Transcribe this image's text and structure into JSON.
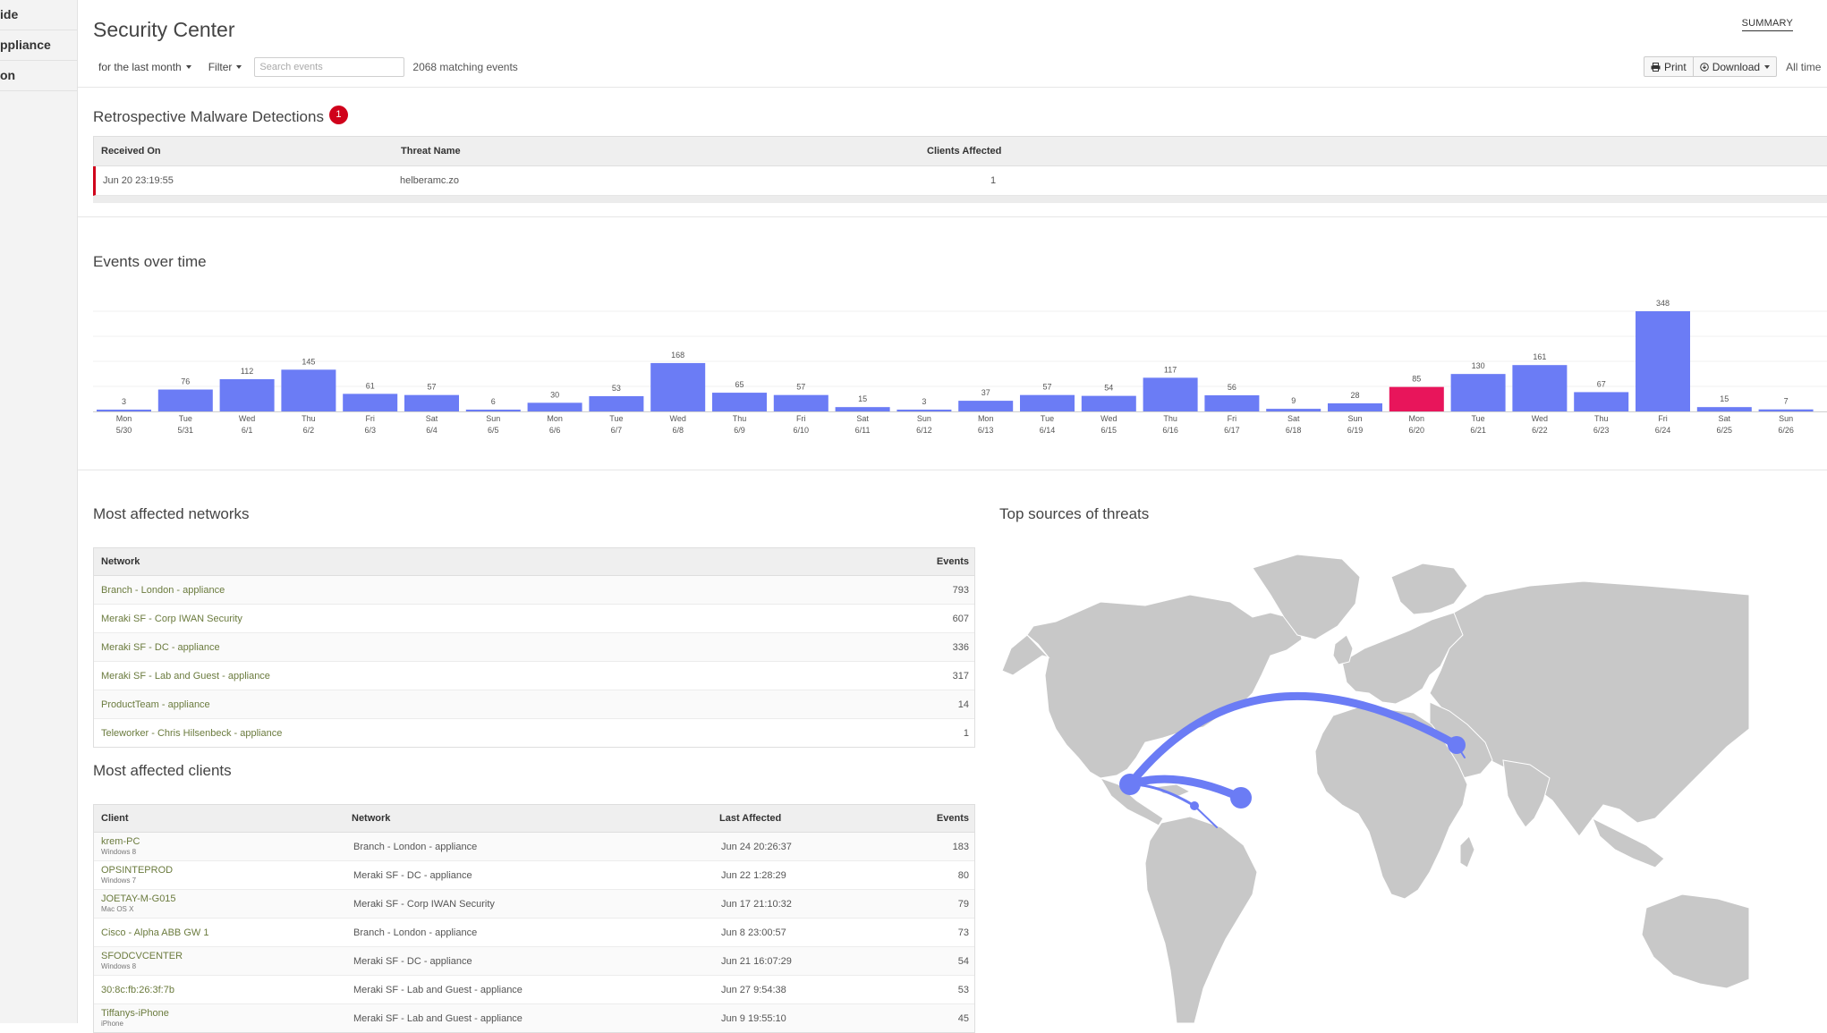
{
  "sidebar": {
    "items": [
      {
        "label": "ide"
      },
      {
        "label": "ppliance"
      },
      {
        "label": "on"
      }
    ]
  },
  "header": {
    "title": "Security Center",
    "summary_link": "SUMMARY"
  },
  "toolbar": {
    "timeframe": "for the last month",
    "filter": "Filter",
    "search_placeholder": "Search events",
    "match_count": "2068 matching events",
    "print": "Print",
    "download": "Download",
    "all_time": "All time"
  },
  "retro": {
    "title": "Retrospective Malware Detections",
    "badge": "1",
    "columns": [
      "Received On",
      "Threat Name",
      "Clients Affected"
    ],
    "rows": [
      {
        "received": "Jun 20 23:19:55",
        "threat": "helberamc.zo",
        "clients": "1"
      }
    ]
  },
  "events_section": {
    "title": "Events over time"
  },
  "chart_data": {
    "type": "bar",
    "categories": [
      "Mon 5/30",
      "Tue 5/31",
      "Wed 6/1",
      "Thu 6/2",
      "Fri 6/3",
      "Sat 6/4",
      "Sun 6/5",
      "Mon 6/6",
      "Tue 6/7",
      "Wed 6/8",
      "Thu 6/9",
      "Fri 6/10",
      "Sat 6/11",
      "Sun 6/12",
      "Mon 6/13",
      "Tue 6/14",
      "Wed 6/15",
      "Thu 6/16",
      "Fri 6/17",
      "Sat 6/18",
      "Sun 6/19",
      "Mon 6/20",
      "Tue 6/21",
      "Wed 6/22",
      "Thu 6/23",
      "Fri 6/24",
      "Sat 6/25",
      "Sun 6/26"
    ],
    "days": [
      "Mon",
      "Tue",
      "Wed",
      "Thu",
      "Fri",
      "Sat",
      "Sun",
      "Mon",
      "Tue",
      "Wed",
      "Thu",
      "Fri",
      "Sat",
      "Sun",
      "Mon",
      "Tue",
      "Wed",
      "Thu",
      "Fri",
      "Sat",
      "Sun",
      "Mon",
      "Tue",
      "Wed",
      "Thu",
      "Fri",
      "Sat",
      "Sun"
    ],
    "dates": [
      "5/30",
      "5/31",
      "6/1",
      "6/2",
      "6/3",
      "6/4",
      "6/5",
      "6/6",
      "6/7",
      "6/8",
      "6/9",
      "6/10",
      "6/11",
      "6/12",
      "6/13",
      "6/14",
      "6/15",
      "6/16",
      "6/17",
      "6/18",
      "6/19",
      "6/20",
      "6/21",
      "6/22",
      "6/23",
      "6/24",
      "6/25",
      "6/26"
    ],
    "values": [
      3,
      76,
      112,
      145,
      61,
      57,
      6,
      30,
      53,
      168,
      65,
      57,
      15,
      3,
      37,
      57,
      54,
      117,
      56,
      9,
      28,
      85,
      130,
      161,
      67,
      348,
      15,
      7
    ],
    "highlight_index": 21,
    "bar_color": "#6b7cf5",
    "highlight_color": "#e8155b",
    "ylim": [
      0,
      348
    ],
    "title": "",
    "xlabel": "",
    "ylabel": ""
  },
  "networks": {
    "title": "Most affected networks",
    "columns": [
      "Network",
      "Events"
    ],
    "rows": [
      {
        "name": "Branch - London - appliance",
        "events": "793"
      },
      {
        "name": "Meraki SF - Corp IWAN Security",
        "events": "607"
      },
      {
        "name": "Meraki SF - DC - appliance",
        "events": "336"
      },
      {
        "name": "Meraki SF - Lab and Guest - appliance",
        "events": "317"
      },
      {
        "name": "ProductTeam - appliance",
        "events": "14"
      },
      {
        "name": "Teleworker - Chris Hilsenbeck - appliance",
        "events": "1"
      }
    ]
  },
  "clients": {
    "title": "Most affected clients",
    "columns": [
      "Client",
      "Network",
      "Last Affected",
      "Events"
    ],
    "rows": [
      {
        "client": "krem-PC",
        "os": "Windows 8",
        "network": "Branch - London - appliance",
        "last": "Jun 24 20:26:37",
        "events": "183"
      },
      {
        "client": "OPSINTEPROD",
        "os": "Windows 7",
        "network": "Meraki SF - DC - appliance",
        "last": "Jun 22 1:28:29",
        "events": "80"
      },
      {
        "client": "JOETAY-M-G015",
        "os": "Mac OS X",
        "network": "Meraki SF - Corp IWAN Security",
        "last": "Jun 17 21:10:32",
        "events": "79"
      },
      {
        "client": "Cisco - Alpha ABB GW 1",
        "os": "",
        "network": "Branch - London - appliance",
        "last": "Jun 8 23:00:57",
        "events": "73"
      },
      {
        "client": "SFODCVCENTER",
        "os": "Windows 8",
        "network": "Meraki SF - DC - appliance",
        "last": "Jun 21 16:07:29",
        "events": "54"
      },
      {
        "client": "30:8c:fb:26:3f:7b",
        "os": "",
        "network": "Meraki SF - Lab and Guest - appliance",
        "last": "Jun 27 9:54:38",
        "events": "53"
      },
      {
        "client": "Tiffanys-iPhone",
        "os": "iPhone",
        "network": "Meraki SF - Lab and Guest - appliance",
        "last": "Jun 9 19:55:10",
        "events": "45"
      }
    ]
  },
  "threats_map": {
    "title": "Top sources of threats",
    "land_color": "#c8c8c8",
    "arc_color": "#6b7cf5"
  }
}
